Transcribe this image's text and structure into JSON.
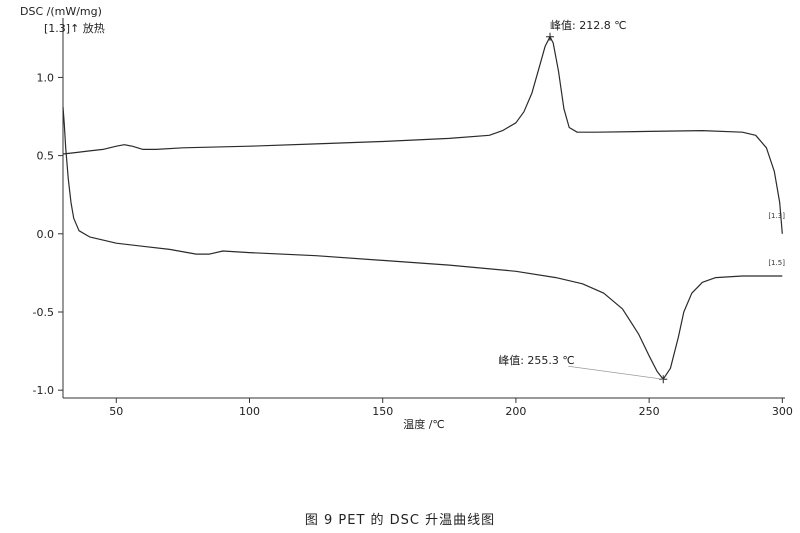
{
  "chart_data": {
    "type": "line",
    "ylabel": "DSC /(mW/mg)",
    "xlabel": "温度 /℃",
    "axis_marker": "[1.3]↑ 放热",
    "caption": "图 9   PET 的 DSC 升温曲线图",
    "xlim": [
      30,
      301
    ],
    "ylim": [
      -1.05,
      1.38
    ],
    "x_ticks": [
      50,
      100,
      150,
      200,
      250,
      300
    ],
    "y_ticks": [
      1.0,
      0.5,
      0.0,
      -0.5,
      -1.0
    ],
    "grid": false,
    "colors": {
      "line": "#2b2b2b",
      "axis": "#333333",
      "leader": "#9a9a9a"
    },
    "series": [
      {
        "label_text": "[1.3]",
        "points": [
          [
            30,
            0.51
          ],
          [
            35,
            0.52
          ],
          [
            40,
            0.53
          ],
          [
            45,
            0.54
          ],
          [
            50,
            0.56
          ],
          [
            53,
            0.57
          ],
          [
            56,
            0.56
          ],
          [
            60,
            0.54
          ],
          [
            65,
            0.54
          ],
          [
            75,
            0.55
          ],
          [
            100,
            0.56
          ],
          [
            125,
            0.575
          ],
          [
            150,
            0.59
          ],
          [
            175,
            0.61
          ],
          [
            190,
            0.63
          ],
          [
            195,
            0.66
          ],
          [
            200,
            0.71
          ],
          [
            203,
            0.78
          ],
          [
            206,
            0.9
          ],
          [
            209,
            1.08
          ],
          [
            211,
            1.2
          ],
          [
            212.8,
            1.26
          ],
          [
            214,
            1.22
          ],
          [
            216,
            1.04
          ],
          [
            218,
            0.8
          ],
          [
            220,
            0.68
          ],
          [
            223,
            0.65
          ],
          [
            230,
            0.65
          ],
          [
            250,
            0.655
          ],
          [
            270,
            0.66
          ],
          [
            285,
            0.65
          ],
          [
            290,
            0.63
          ],
          [
            294,
            0.55
          ],
          [
            297,
            0.4
          ],
          [
            299,
            0.2
          ],
          [
            300,
            0.0
          ]
        ]
      },
      {
        "label_text": "[1.5]",
        "points": [
          [
            30,
            0.81
          ],
          [
            30.5,
            0.7
          ],
          [
            31,
            0.55
          ],
          [
            32,
            0.35
          ],
          [
            33,
            0.2
          ],
          [
            34,
            0.1
          ],
          [
            36,
            0.02
          ],
          [
            40,
            -0.02
          ],
          [
            45,
            -0.04
          ],
          [
            50,
            -0.06
          ],
          [
            60,
            -0.08
          ],
          [
            70,
            -0.1
          ],
          [
            80,
            -0.13
          ],
          [
            85,
            -0.13
          ],
          [
            90,
            -0.11
          ],
          [
            100,
            -0.12
          ],
          [
            125,
            -0.14
          ],
          [
            150,
            -0.17
          ],
          [
            175,
            -0.2
          ],
          [
            200,
            -0.24
          ],
          [
            215,
            -0.28
          ],
          [
            225,
            -0.32
          ],
          [
            233,
            -0.38
          ],
          [
            240,
            -0.48
          ],
          [
            246,
            -0.64
          ],
          [
            250,
            -0.78
          ],
          [
            253,
            -0.88
          ],
          [
            255.3,
            -0.93
          ],
          [
            258,
            -0.86
          ],
          [
            261,
            -0.66
          ],
          [
            263,
            -0.5
          ],
          [
            266,
            -0.38
          ],
          [
            270,
            -0.31
          ],
          [
            275,
            -0.28
          ],
          [
            285,
            -0.27
          ],
          [
            300,
            -0.27
          ]
        ]
      }
    ],
    "annotations": [
      {
        "text": "峰值: 212.8 ℃",
        "x": 212.8,
        "y": 1.26
      },
      {
        "text": "峰值: 255.3 ℃",
        "x": 255.3,
        "y": -0.93
      }
    ]
  }
}
